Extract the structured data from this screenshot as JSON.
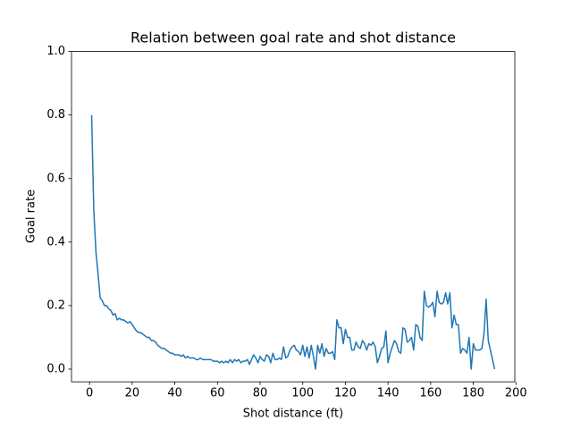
{
  "chart_data": {
    "type": "line",
    "title": "Relation between goal rate and shot distance",
    "x_label": "Shot distance (ft)",
    "y_label": "Goal rate",
    "x": [
      1,
      2,
      3,
      4,
      5,
      6,
      7,
      8,
      9,
      10,
      11,
      12,
      13,
      14,
      15,
      16,
      17,
      18,
      19,
      20,
      21,
      22,
      23,
      24,
      25,
      26,
      27,
      28,
      29,
      30,
      31,
      32,
      33,
      34,
      35,
      36,
      37,
      38,
      39,
      40,
      41,
      42,
      43,
      44,
      45,
      46,
      47,
      48,
      49,
      50,
      51,
      52,
      53,
      54,
      55,
      56,
      57,
      58,
      59,
      60,
      61,
      62,
      63,
      64,
      65,
      66,
      67,
      68,
      69,
      70,
      71,
      72,
      73,
      74,
      75,
      76,
      77,
      78,
      79,
      80,
      81,
      82,
      83,
      84,
      85,
      86,
      87,
      88,
      89,
      90,
      91,
      92,
      93,
      94,
      95,
      96,
      97,
      98,
      99,
      100,
      101,
      102,
      103,
      104,
      105,
      106,
      107,
      108,
      109,
      110,
      111,
      112,
      113,
      114,
      115,
      116,
      117,
      118,
      119,
      120,
      121,
      122,
      123,
      124,
      125,
      126,
      127,
      128,
      129,
      130,
      131,
      132,
      133,
      134,
      135,
      136,
      137,
      138,
      139,
      140,
      141,
      142,
      143,
      144,
      145,
      146,
      147,
      148,
      149,
      150,
      151,
      152,
      153,
      154,
      155,
      156,
      157,
      158,
      159,
      160,
      161,
      162,
      163,
      164,
      165,
      166,
      167,
      168,
      169,
      170,
      171,
      172,
      173,
      174,
      175,
      176,
      177,
      178,
      179,
      180,
      181,
      182,
      183,
      184,
      185,
      186,
      187,
      188,
      189,
      190
    ],
    "series": [
      {
        "name": "Goal rate",
        "color": "#1f77b4",
        "values": [
          0.8,
          0.5,
          0.37,
          0.3,
          0.225,
          0.215,
          0.2,
          0.2,
          0.19,
          0.185,
          0.17,
          0.175,
          0.155,
          0.16,
          0.155,
          0.155,
          0.15,
          0.145,
          0.15,
          0.14,
          0.13,
          0.12,
          0.115,
          0.115,
          0.11,
          0.105,
          0.1,
          0.1,
          0.09,
          0.09,
          0.085,
          0.075,
          0.07,
          0.065,
          0.065,
          0.06,
          0.055,
          0.05,
          0.05,
          0.045,
          0.045,
          0.045,
          0.04,
          0.045,
          0.035,
          0.04,
          0.035,
          0.035,
          0.035,
          0.03,
          0.03,
          0.035,
          0.03,
          0.03,
          0.03,
          0.03,
          0.03,
          0.025,
          0.025,
          0.025,
          0.02,
          0.025,
          0.02,
          0.025,
          0.02,
          0.03,
          0.02,
          0.03,
          0.025,
          0.03,
          0.02,
          0.025,
          0.025,
          0.03,
          0.015,
          0.03,
          0.045,
          0.035,
          0.02,
          0.04,
          0.03,
          0.025,
          0.045,
          0.04,
          0.02,
          0.05,
          0.03,
          0.03,
          0.035,
          0.03,
          0.07,
          0.035,
          0.04,
          0.06,
          0.07,
          0.075,
          0.06,
          0.055,
          0.045,
          0.075,
          0.04,
          0.07,
          0.035,
          0.075,
          0.04,
          0.0,
          0.075,
          0.05,
          0.08,
          0.04,
          0.065,
          0.05,
          0.05,
          0.055,
          0.03,
          0.155,
          0.13,
          0.13,
          0.08,
          0.125,
          0.1,
          0.1,
          0.06,
          0.06,
          0.085,
          0.07,
          0.065,
          0.09,
          0.08,
          0.06,
          0.08,
          0.075,
          0.085,
          0.07,
          0.02,
          0.04,
          0.065,
          0.07,
          0.12,
          0.02,
          0.05,
          0.07,
          0.09,
          0.08,
          0.055,
          0.05,
          0.13,
          0.125,
          0.085,
          0.09,
          0.1,
          0.06,
          0.14,
          0.135,
          0.1,
          0.09,
          0.245,
          0.2,
          0.195,
          0.2,
          0.21,
          0.165,
          0.245,
          0.21,
          0.205,
          0.21,
          0.24,
          0.205,
          0.24,
          0.13,
          0.17,
          0.14,
          0.14,
          0.05,
          0.065,
          0.06,
          0.05,
          0.1,
          0.0,
          0.08,
          0.06,
          0.06,
          0.06,
          0.065,
          0.11,
          0.22,
          0.09,
          0.06,
          0.03,
          0.0
        ]
      }
    ],
    "xlim": [
      -8.45,
      199.45
    ],
    "xticks": [
      0,
      20,
      40,
      60,
      80,
      100,
      120,
      140,
      160,
      180,
      200
    ],
    "ylim": [
      -0.04,
      1.0
    ],
    "yticks": [
      {
        "value": 0,
        "label": "0.0"
      },
      0.2,
      0.4,
      0.6,
      0.8,
      {
        "value": 1,
        "label": "1.0"
      }
    ],
    "grid": false
  }
}
